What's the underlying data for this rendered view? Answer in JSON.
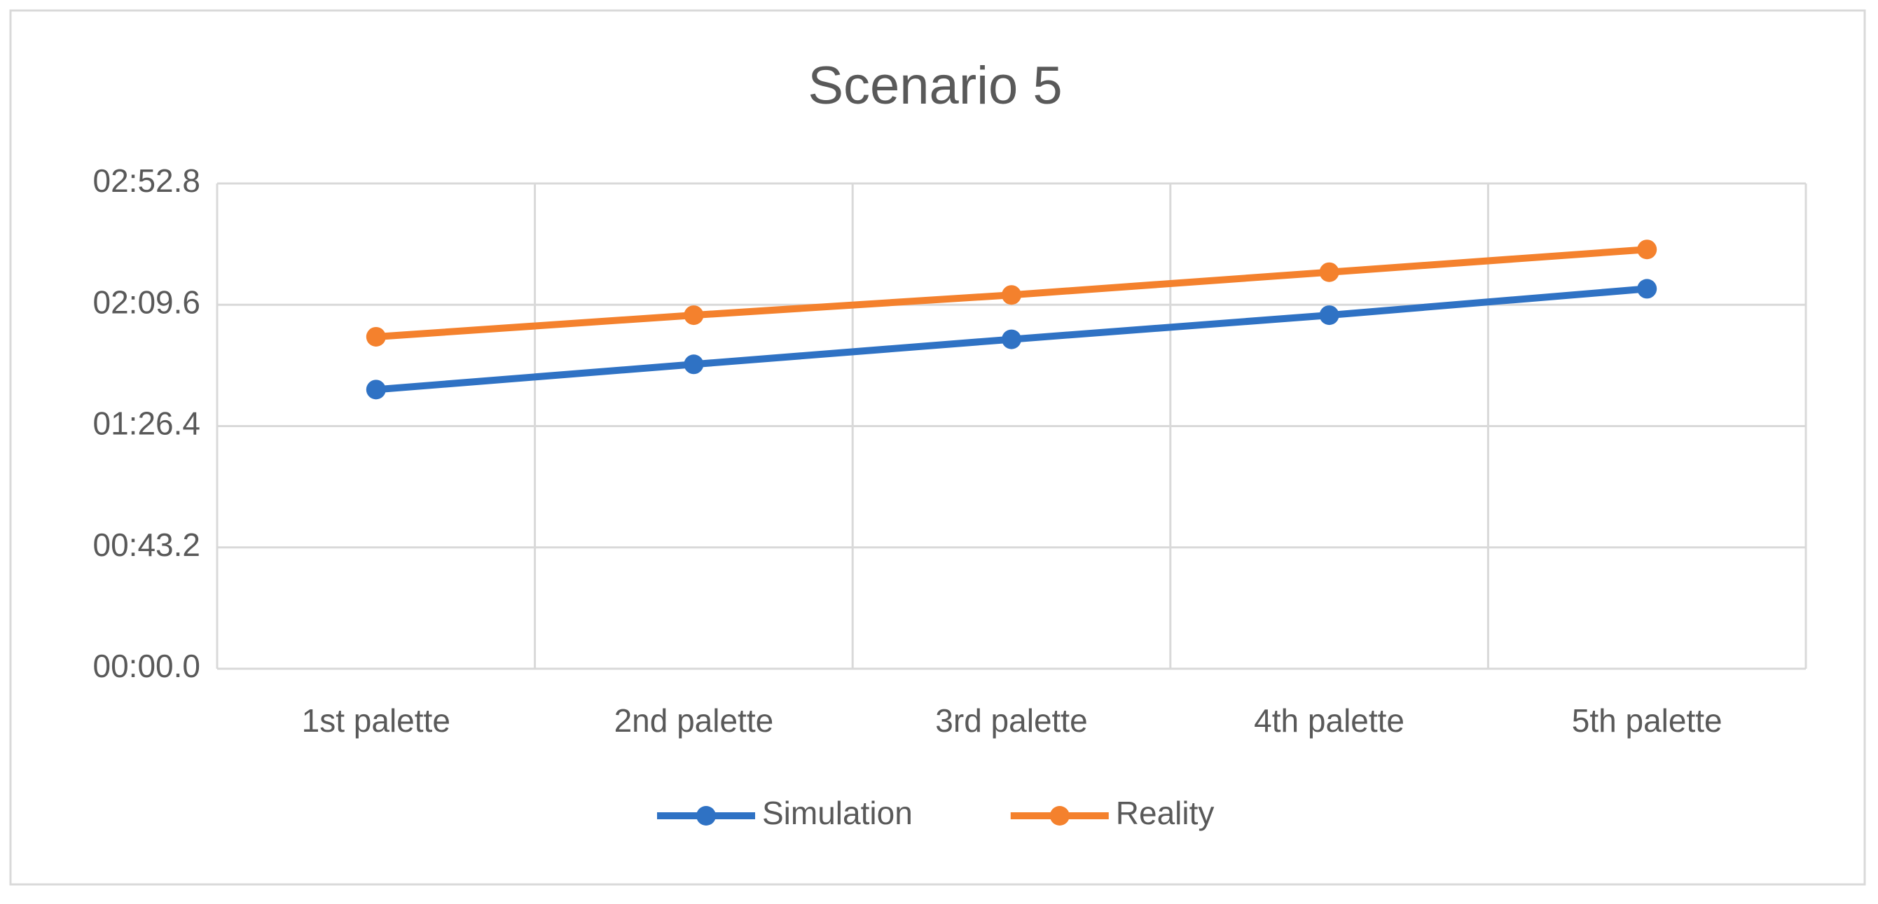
{
  "chart_data": {
    "type": "line",
    "title": "Scenario 5",
    "categories": [
      "1st palette",
      "2nd palette",
      "3rd palette",
      "4th palette",
      "5th palette"
    ],
    "series": [
      {
        "name": "Simulation",
        "color": "#2f72c4",
        "values": [
          99.4,
          108.4,
          117.3,
          125.9,
          135.3
        ]
      },
      {
        "name": "Reality",
        "color": "#f4812d",
        "values": [
          118.2,
          125.9,
          133.1,
          141.2,
          149.3
        ]
      }
    ],
    "ylim": [
      0,
      172.8
    ],
    "yticks": [
      {
        "value": 0,
        "label": "00:00.0"
      },
      {
        "value": 43.2,
        "label": "00:43.2"
      },
      {
        "value": 86.4,
        "label": "01:26.4"
      },
      {
        "value": 129.6,
        "label": "02:09.6"
      },
      {
        "value": 172.8,
        "label": "02:52.8"
      }
    ],
    "grid": true,
    "legend": "bottom"
  }
}
